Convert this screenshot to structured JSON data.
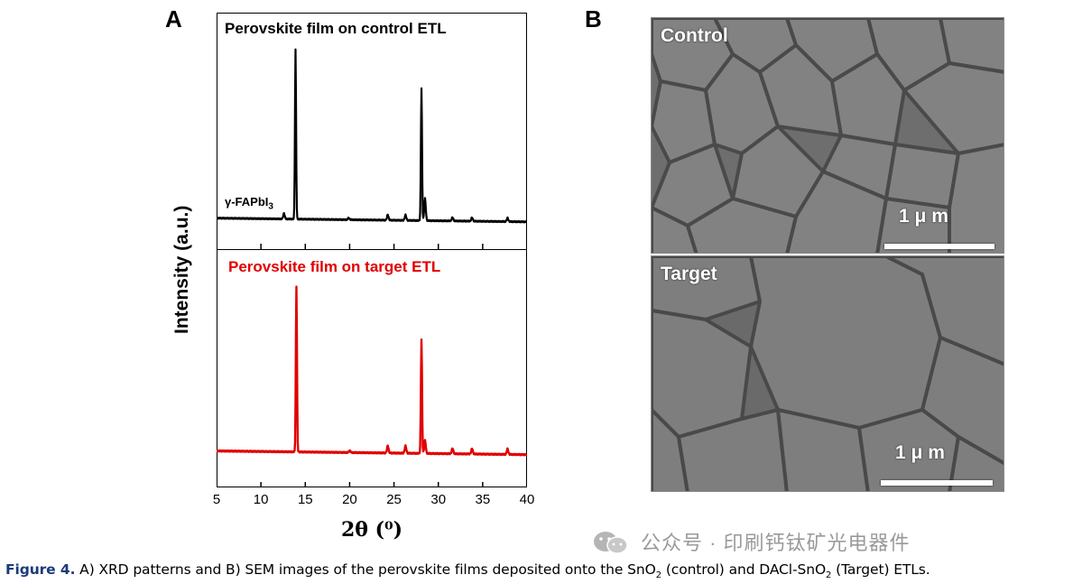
{
  "panel_a": {
    "letter": "A",
    "ylabel": "Intensity (a.u.)",
    "xlabel": "2θ (⁰)",
    "x_ticks": [
      "5",
      "10",
      "15",
      "20",
      "25",
      "30",
      "35",
      "40"
    ],
    "control_title": "Perovskite film on control ETL",
    "target_title": "Perovskite film on target ETL",
    "annotation_prefix": "γ-FAPbI",
    "annotation_sub": "3"
  },
  "panel_b": {
    "letter": "B",
    "control_label": "Control",
    "target_label": "Target",
    "scale_text": "1 μ m"
  },
  "caption": {
    "figure_label": "Figure 4.",
    "text_1": " A) XRD patterns and B) SEM images of the perovskite films deposited onto the SnO",
    "sub_1": "2",
    "text_2": " (control) and DACl-SnO",
    "sub_2": "2",
    "text_3": " (Target) ETLs."
  },
  "watermark": {
    "text": "公众号 · 印刷钙钛矿光电器件"
  },
  "colors": {
    "control_trace": "#000000",
    "target_trace": "#e00000",
    "target_title": "#e00000"
  },
  "chart_data": {
    "type": "line",
    "title": "",
    "xlabel": "2θ (⁰)",
    "ylabel": "Intensity (a.u.)",
    "xlim": [
      5,
      40
    ],
    "ylim": [
      0,
      1
    ],
    "grid": false,
    "series": [
      {
        "name": "Perovskite film on control ETL",
        "baseline": 0.08,
        "peaks": [
          {
            "x": 12.6,
            "y": 0.11
          },
          {
            "x": 13.9,
            "y": 1.0
          },
          {
            "x": 19.9,
            "y": 0.09
          },
          {
            "x": 24.3,
            "y": 0.11
          },
          {
            "x": 26.3,
            "y": 0.11
          },
          {
            "x": 28.1,
            "y": 0.8
          },
          {
            "x": 28.5,
            "y": 0.2
          },
          {
            "x": 31.6,
            "y": 0.1
          },
          {
            "x": 33.8,
            "y": 0.1
          },
          {
            "x": 37.8,
            "y": 0.1
          }
        ]
      },
      {
        "name": "Perovskite film on target ETL",
        "baseline": 0.1,
        "peaks": [
          {
            "x": 14.0,
            "y": 1.0
          },
          {
            "x": 20.0,
            "y": 0.11
          },
          {
            "x": 24.3,
            "y": 0.14
          },
          {
            "x": 26.3,
            "y": 0.14
          },
          {
            "x": 28.1,
            "y": 0.72
          },
          {
            "x": 28.5,
            "y": 0.17
          },
          {
            "x": 31.6,
            "y": 0.13
          },
          {
            "x": 33.8,
            "y": 0.13
          },
          {
            "x": 37.8,
            "y": 0.13
          }
        ]
      }
    ]
  }
}
